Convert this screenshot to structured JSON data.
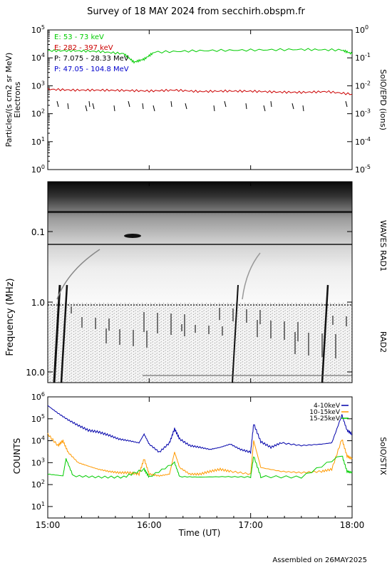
{
  "title": "Survey of 18 MAY 2024 from secchirh.obspm.fr",
  "footer": "Assembled on 26MAY2025",
  "colors": {
    "green": "#00cc00",
    "red": "#cc0000",
    "black": "#000000",
    "blue": "#0000cc",
    "orange": "#ff9900",
    "stix_blue": "#0000aa",
    "stix_green": "#00cc00"
  },
  "chart_data": [
    {
      "type": "line",
      "panel": "epd",
      "ylabel_left": "Particles/(s cm2 sr MeV)",
      "ylabel_left2": "Electrons",
      "ylabel_right": "SolO/EPD (ions)",
      "yscale": "log",
      "ylim": [
        1,
        100000
      ],
      "yticks": [
        "10^0",
        "10^1",
        "10^2",
        "10^3",
        "10^4",
        "10^5"
      ],
      "y2lim": [
        1e-05,
        1
      ],
      "y2ticks": [
        "10^-5",
        "10^-4",
        "10^-3",
        "10^-2",
        "10^-1",
        "10^0"
      ],
      "series": [
        {
          "name": "E: 53 - 73 keV",
          "color": "#00cc00",
          "x": [
            15.0,
            15.25,
            15.5,
            15.75,
            15.85,
            15.95,
            16.05,
            16.5,
            17.0,
            17.5,
            17.9,
            18.0
          ],
          "y": [
            18000,
            18000,
            17000,
            14000,
            7000,
            9000,
            16000,
            18000,
            19000,
            20000,
            19000,
            14000
          ]
        },
        {
          "name": "E: 282 - 397 keV",
          "color": "#cc0000",
          "x": [
            15.0,
            15.25,
            15.5,
            15.75,
            16.0,
            16.25,
            16.5,
            16.75,
            17.0,
            17.25,
            17.5,
            17.75,
            18.0
          ],
          "y": [
            750,
            700,
            700,
            680,
            650,
            700,
            620,
            650,
            640,
            600,
            580,
            620,
            500
          ]
        },
        {
          "name": "P: 7.075 - 28.33 MeV",
          "color": "#000000",
          "x": [],
          "y": []
        },
        {
          "name": "P: 47.05 - 104.8 MeV",
          "color": "#0000cc",
          "x": [],
          "y": []
        }
      ]
    },
    {
      "type": "heatmap",
      "panel": "waves",
      "ylabel": "Frequency (MHz)",
      "yscale": "log",
      "ylim": [
        0.02,
        16
      ],
      "yticks": [
        "0.1",
        "1.0",
        "10.0"
      ],
      "label_rad1": "WAVES RAD1",
      "label_rad2": "RAD2"
    },
    {
      "type": "line",
      "panel": "stix",
      "ylabel_left": "COUNTS",
      "ylabel_right": "SolO/STIX",
      "xlabel": "Time (UT)",
      "yscale": "log",
      "ylim": [
        3,
        1000000
      ],
      "yticks": [
        "10^1",
        "10^2",
        "10^3",
        "10^4",
        "10^5",
        "10^6"
      ],
      "xlim": [
        15.0,
        18.0
      ],
      "xticks": [
        "15:00",
        "16:00",
        "17:00",
        "18:00"
      ],
      "series": [
        {
          "name": "4-10keV",
          "color": "#0000aa",
          "x": [
            15.0,
            15.1,
            15.2,
            15.3,
            15.4,
            15.5,
            15.6,
            15.7,
            15.8,
            15.9,
            15.95,
            16.0,
            16.1,
            16.2,
            16.25,
            16.3,
            16.4,
            16.5,
            16.6,
            16.7,
            16.8,
            16.9,
            17.0,
            17.03,
            17.1,
            17.2,
            17.3,
            17.5,
            17.7,
            17.8,
            17.9,
            17.95,
            18.0
          ],
          "y": [
            400000,
            180000,
            90000,
            50000,
            30000,
            25000,
            18000,
            12000,
            10000,
            8000,
            20000,
            7000,
            3000,
            8000,
            35000,
            12000,
            6000,
            5000,
            4000,
            5000,
            7000,
            4000,
            3000,
            60000,
            9000,
            5000,
            8000,
            6000,
            7000,
            8000,
            150000,
            30000,
            20000
          ]
        },
        {
          "name": "10-15keV",
          "color": "#ff9900",
          "x": [
            15.0,
            15.1,
            15.15,
            15.2,
            15.3,
            15.4,
            15.5,
            15.6,
            15.7,
            15.8,
            15.9,
            15.95,
            16.0,
            16.1,
            16.2,
            16.25,
            16.3,
            16.4,
            16.5,
            16.6,
            16.7,
            16.8,
            17.0,
            17.03,
            17.1,
            17.3,
            17.5,
            17.7,
            17.8,
            17.9,
            17.95,
            18.0
          ],
          "y": [
            20000,
            6000,
            10000,
            3000,
            1000,
            700,
            500,
            400,
            350,
            350,
            300,
            1500,
            300,
            250,
            300,
            3000,
            600,
            300,
            300,
            400,
            500,
            400,
            300,
            10000,
            600,
            400,
            350,
            400,
            500,
            12000,
            2000,
            1500
          ]
        },
        {
          "name": "15-25keV",
          "color": "#00cc00",
          "x": [
            15.0,
            15.15,
            15.18,
            15.25,
            15.5,
            15.75,
            15.95,
            16.0,
            16.25,
            16.3,
            16.5,
            16.75,
            17.0,
            17.03,
            17.1,
            17.5,
            17.9,
            17.95,
            18.0
          ],
          "y": [
            300,
            250,
            1500,
            250,
            220,
            220,
            500,
            220,
            1000,
            230,
            220,
            230,
            220,
            2000,
            230,
            220,
            2200,
            400,
            350
          ]
        }
      ]
    }
  ]
}
